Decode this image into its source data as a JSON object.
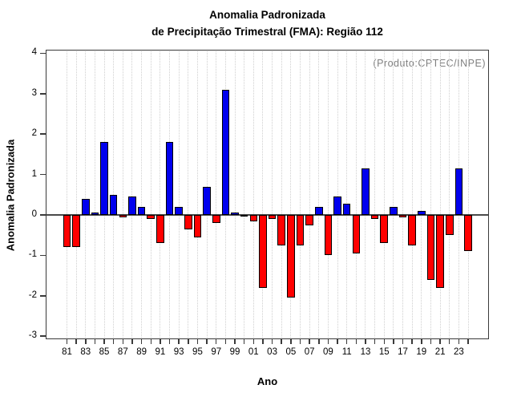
{
  "header": {
    "title_line1": "Anomalia Padronizada",
    "title_line2": "de Precipitação Trimestral (FMA): Região 112"
  },
  "annotation": "(Produto:CPTEC/INPE)",
  "chart_data": {
    "type": "bar",
    "title": "Anomalia Padronizada",
    "subtitle": "de Precipitação Trimestral (FMA): Região 112",
    "xlabel": "Ano",
    "ylabel": "Anomalia Padronizada",
    "ylim": [
      -3.1,
      4.1
    ],
    "yticks": [
      4,
      3,
      2,
      1,
      0,
      -1,
      -2,
      -3
    ],
    "grid": "vertical dotted line at every year",
    "legend": "none",
    "categories": [
      "81",
      "82",
      "83",
      "84",
      "85",
      "86",
      "87",
      "88",
      "89",
      "90",
      "91",
      "92",
      "93",
      "94",
      "95",
      "96",
      "97",
      "98",
      "99",
      "00",
      "01",
      "02",
      "03",
      "04",
      "05",
      "06",
      "07",
      "08",
      "09",
      "10",
      "11",
      "12",
      "13",
      "14",
      "15",
      "16",
      "17",
      "18",
      "19",
      "20",
      "21",
      "22",
      "23",
      "24"
    ],
    "labeled_categories": [
      "81",
      "83",
      "85",
      "87",
      "89",
      "91",
      "93",
      "95",
      "97",
      "99",
      "01",
      "03",
      "05",
      "07",
      "09",
      "11",
      "13",
      "15",
      "17",
      "19",
      "21",
      "23"
    ],
    "values": [
      -0.8,
      -0.8,
      0.4,
      0.05,
      1.8,
      0.5,
      -0.05,
      0.45,
      0.2,
      -0.1,
      -0.7,
      1.8,
      0.2,
      -0.35,
      -0.55,
      0.7,
      -0.2,
      3.1,
      0.05,
      -0.03,
      -0.15,
      -1.8,
      -0.1,
      -0.75,
      -2.05,
      -0.75,
      -0.25,
      0.2,
      -1.0,
      0.45,
      0.28,
      -0.95,
      1.15,
      -0.1,
      -0.7,
      0.2,
      -0.05,
      -0.75,
      0.1,
      -1.6,
      -1.8,
      -0.5,
      1.15,
      -0.9
    ],
    "colors": {
      "positive": "#0000ee",
      "negative": "#ff0000",
      "bar_border": "#000000",
      "grid": "#cfcfcf",
      "zero_line": "#4a4a4a",
      "annotation": "#808080"
    }
  }
}
